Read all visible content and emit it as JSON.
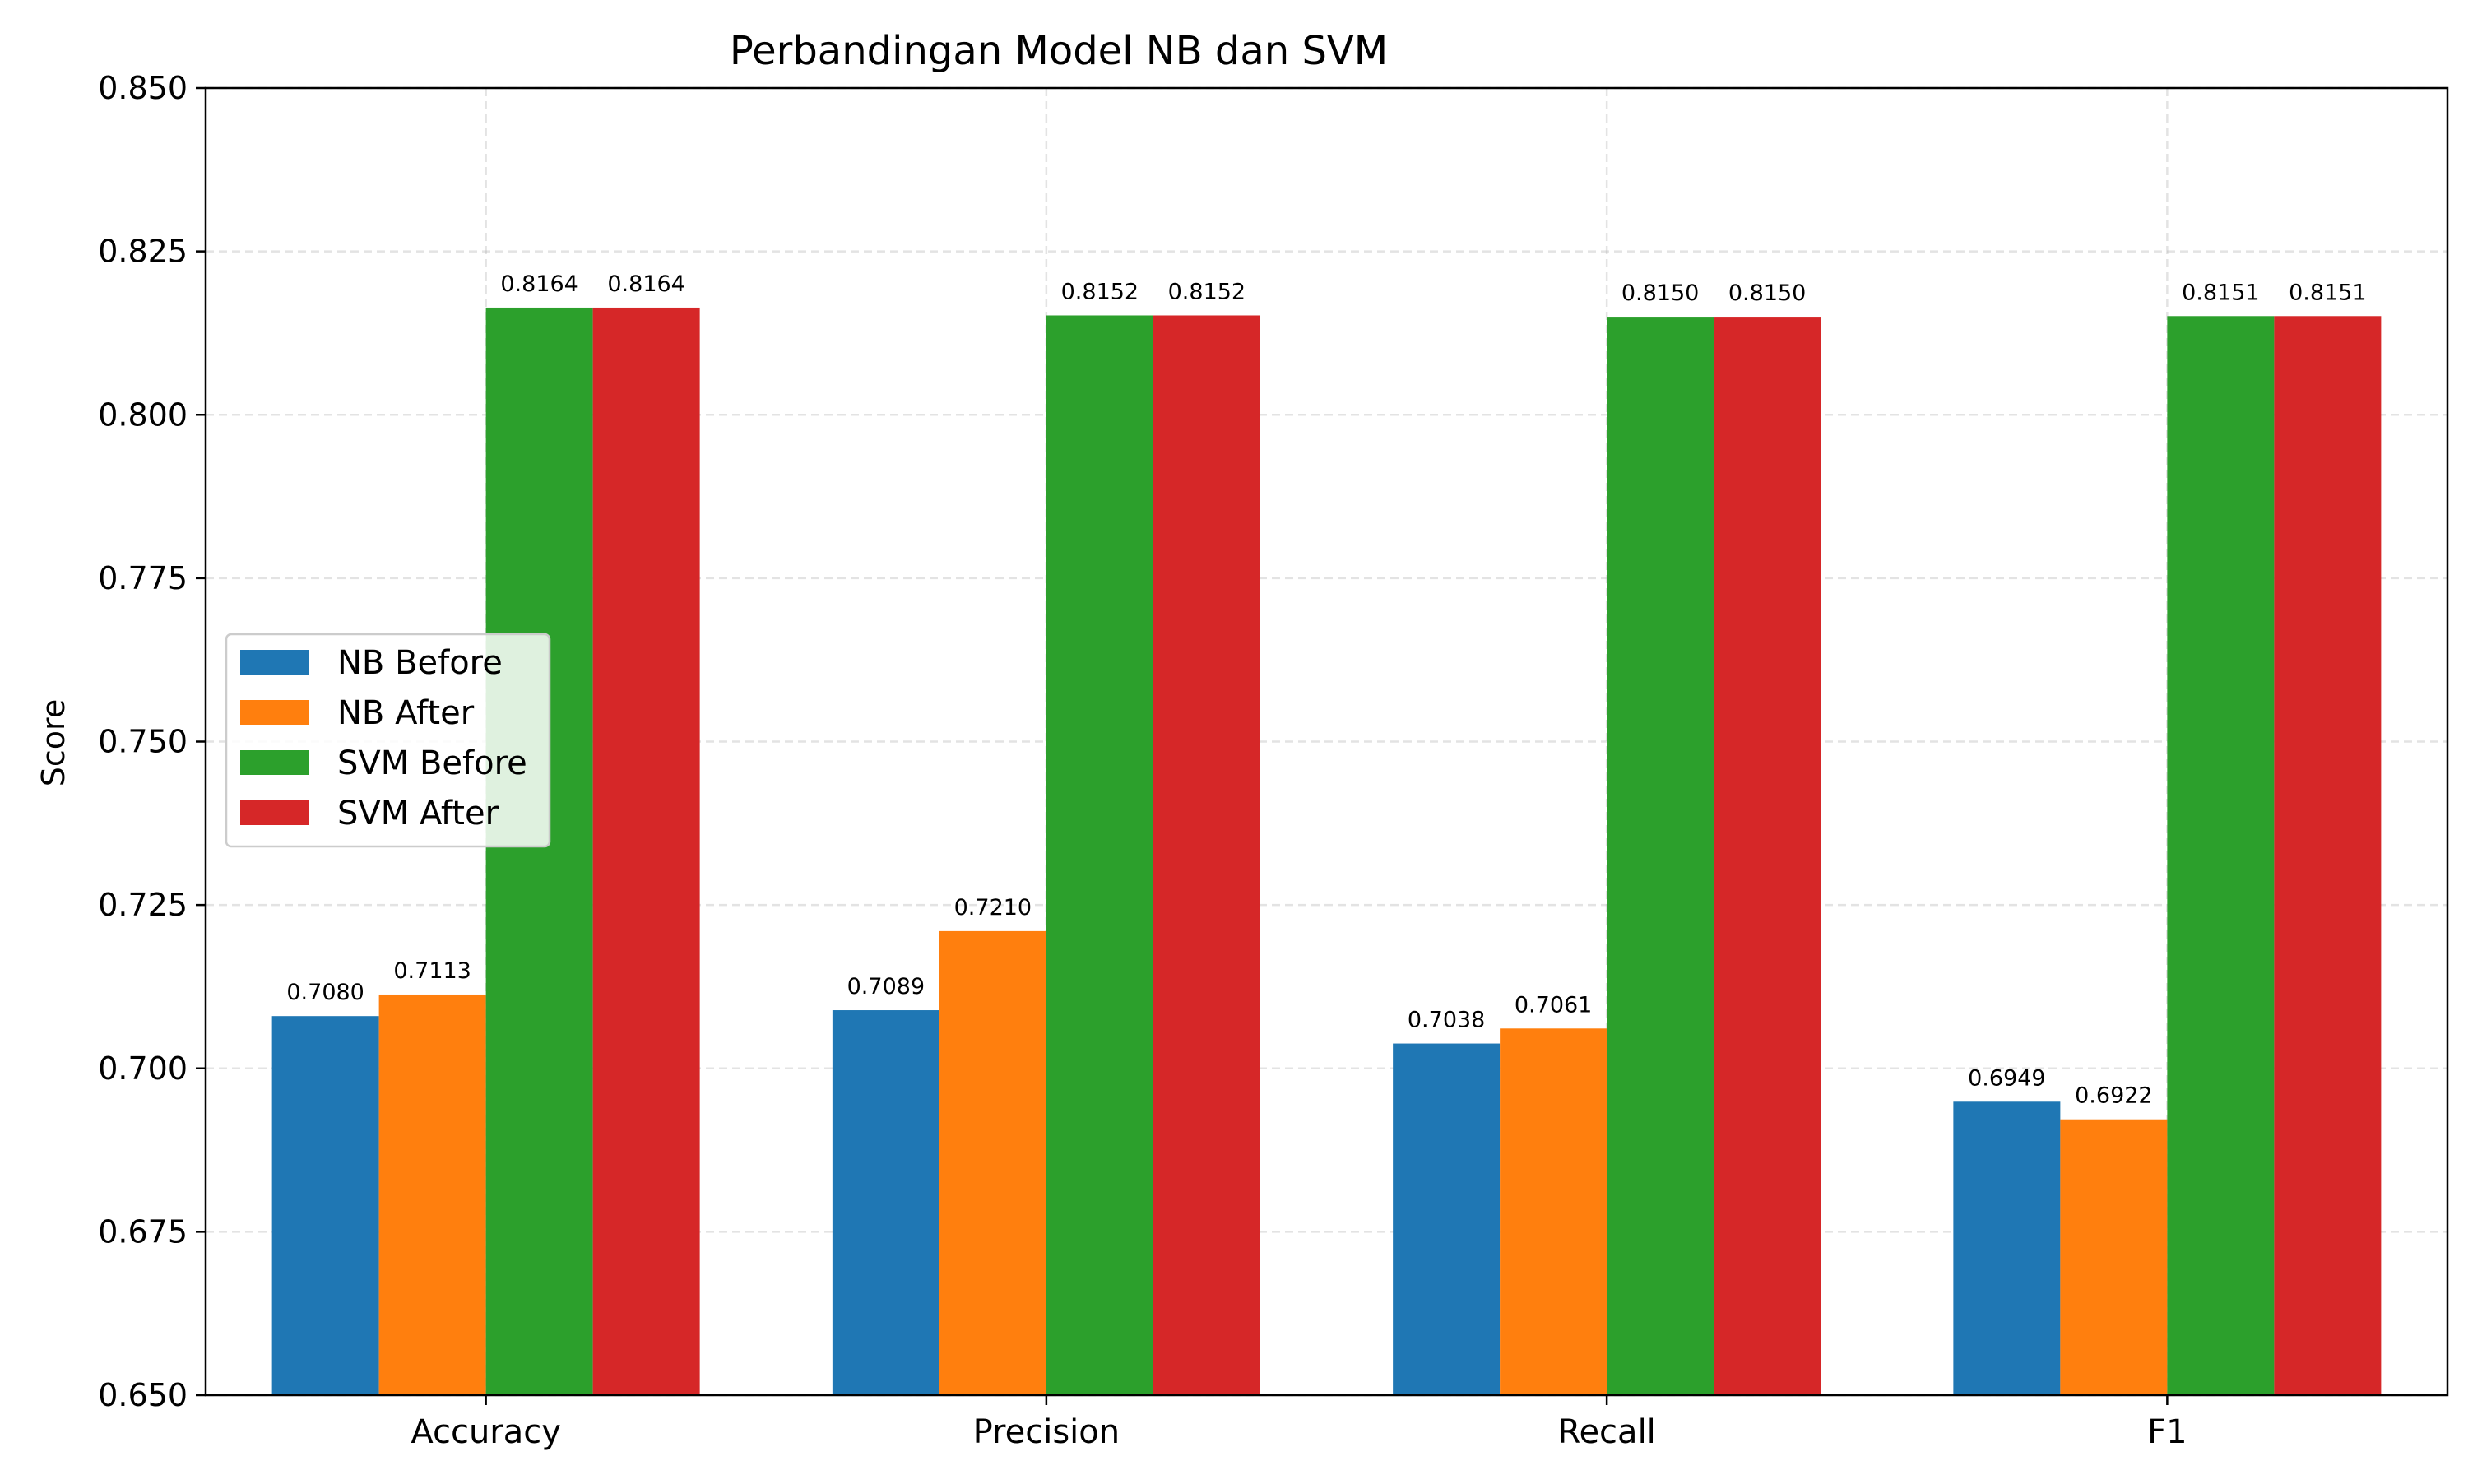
{
  "chart_data": {
    "type": "bar",
    "title": "Perbandingan Model NB dan SVM",
    "xlabel": "",
    "ylabel": "Score",
    "ylim": [
      0.65,
      0.85
    ],
    "yticks": [
      "0.650",
      "0.675",
      "0.700",
      "0.725",
      "0.750",
      "0.775",
      "0.800",
      "0.825",
      "0.850"
    ],
    "categories": [
      "Accuracy",
      "Precision",
      "Recall",
      "F1"
    ],
    "series": [
      {
        "name": "NB Before",
        "color": "#1f77b4",
        "values": [
          0.708,
          0.7089,
          0.7038,
          0.6949
        ],
        "labels": [
          "0.7080",
          "0.7089",
          "0.7038",
          "0.6949"
        ]
      },
      {
        "name": "NB After",
        "color": "#ff7f0e",
        "values": [
          0.7113,
          0.721,
          0.7061,
          0.6922
        ],
        "labels": [
          "0.7113",
          "0.7210",
          "0.7061",
          "0.6922"
        ]
      },
      {
        "name": "SVM Before",
        "color": "#2ca02c",
        "values": [
          0.8164,
          0.8152,
          0.815,
          0.8151
        ],
        "labels": [
          "0.8164",
          "0.8152",
          "0.8150",
          "0.8151"
        ]
      },
      {
        "name": "SVM After",
        "color": "#d62728",
        "values": [
          0.8164,
          0.8152,
          0.815,
          0.8151
        ],
        "labels": [
          "0.8164",
          "0.8152",
          "0.8150",
          "0.8151"
        ]
      }
    ],
    "grid": true,
    "legend_position": "center-left"
  }
}
